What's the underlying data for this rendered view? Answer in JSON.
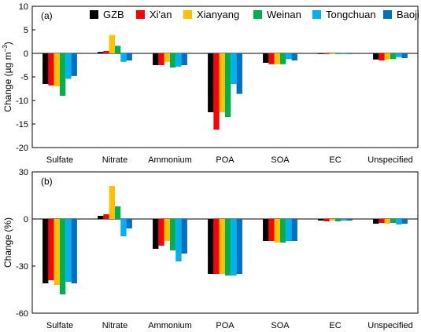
{
  "chart_data": [
    {
      "type": "bar",
      "panel_label": "(a)",
      "ylabel": "Change (µg m⁻³)",
      "ylabel_main": "Change (µg m",
      "ylabel_sup": "−3",
      "ylabel_close": ")",
      "ylim": [
        -20,
        10
      ],
      "yticks": [
        -20,
        -15,
        -10,
        -5,
        0,
        5,
        10
      ],
      "categories": [
        "Sulfate",
        "Nitrate",
        "Ammonium",
        "POA",
        "SOA",
        "EC",
        "Unspecified"
      ],
      "series": [
        {
          "name": "GZB",
          "color": "#000000",
          "values": [
            -6.5,
            0.3,
            -2.5,
            -12.5,
            -2.0,
            -0.1,
            -1.3
          ]
        },
        {
          "name": "Xi'an",
          "color": "#ff0000",
          "values": [
            -6.8,
            0.5,
            -2.5,
            -16.2,
            -2.3,
            -0.1,
            -1.5
          ]
        },
        {
          "name": "Xianyang",
          "color": "#ffc000",
          "values": [
            -7.0,
            3.9,
            -1.8,
            -12.5,
            -2.3,
            -0.1,
            -1.3
          ]
        },
        {
          "name": "Weinan",
          "color": "#00b050",
          "values": [
            -9.0,
            1.6,
            -3.0,
            -13.5,
            -2.3,
            -0.1,
            -1.2
          ]
        },
        {
          "name": "Tongchuan",
          "color": "#00b0f0",
          "values": [
            -5.4,
            -1.8,
            -2.8,
            -6.5,
            -1.2,
            -0.1,
            -0.8
          ]
        },
        {
          "name": "Baoji",
          "color": "#0070c0",
          "values": [
            -4.8,
            -1.5,
            -2.5,
            -8.6,
            -1.5,
            -0.1,
            -1.0
          ]
        }
      ]
    },
    {
      "type": "bar",
      "panel_label": "(b)",
      "ylabel": "Change (%)",
      "ylim": [
        -60,
        30
      ],
      "yticks": [
        -60,
        -30,
        0,
        30
      ],
      "categories": [
        "Sulfate",
        "Nitrate",
        "Ammonium",
        "POA",
        "SOA",
        "EC",
        "Unspecified"
      ],
      "series": [
        {
          "name": "GZB",
          "color": "#000000",
          "values": [
            -41,
            2,
            -19,
            -35,
            -14,
            -1,
            -3
          ]
        },
        {
          "name": "Xi'an",
          "color": "#ff0000",
          "values": [
            -39,
            3,
            -17,
            -35,
            -14,
            -1.5,
            -2.5
          ]
        },
        {
          "name": "Xianyang",
          "color": "#ffc000",
          "values": [
            -42,
            21,
            -14,
            -35,
            -15,
            -1,
            -3
          ]
        },
        {
          "name": "Weinan",
          "color": "#00b050",
          "values": [
            -48,
            8,
            -20,
            -36,
            -15,
            -1.5,
            -2.5
          ]
        },
        {
          "name": "Tongchuan",
          "color": "#00b0f0",
          "values": [
            -40,
            -11,
            -27,
            -36,
            -14,
            -1,
            -3.5
          ]
        },
        {
          "name": "Baoji",
          "color": "#0070c0",
          "values": [
            -41,
            -6,
            -22,
            -35,
            -14,
            -1,
            -3
          ]
        }
      ]
    }
  ]
}
